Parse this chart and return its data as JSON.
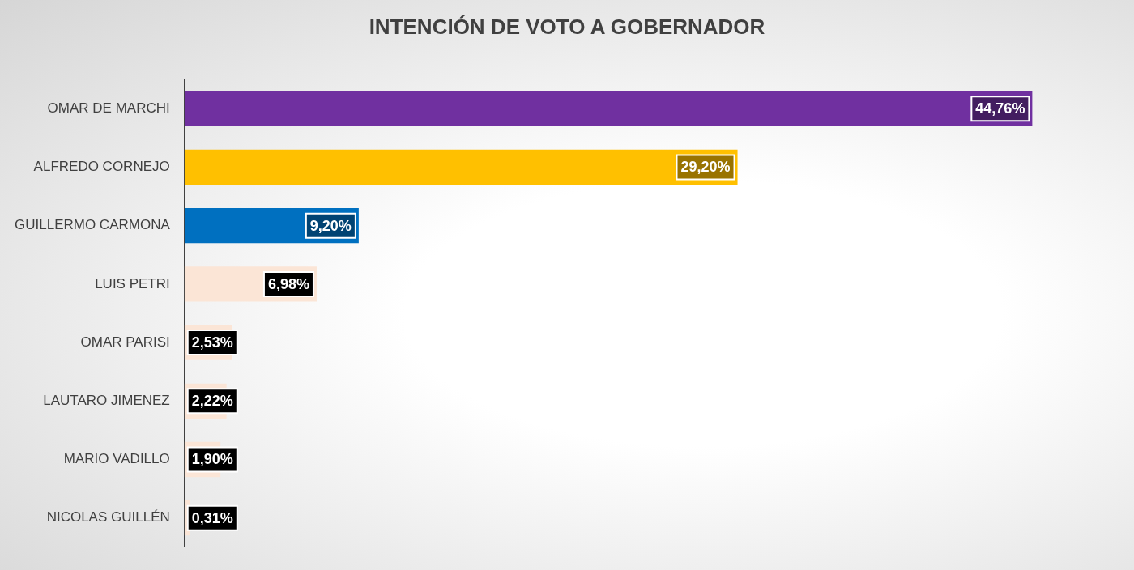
{
  "chart_data": {
    "type": "bar",
    "orientation": "horizontal",
    "title": "INTENCIÓN DE VOTO A GOBERNADOR",
    "categories": [
      "OMAR DE MARCHI",
      "ALFREDO CORNEJO",
      "GUILLERMO CARMONA",
      "LUIS PETRI",
      "OMAR PARISI",
      "LAUTARO JIMENEZ",
      "MARIO VADILLO",
      "NICOLAS GUILLÉN"
    ],
    "values": [
      44.76,
      29.2,
      9.2,
      6.98,
      2.53,
      2.22,
      1.9,
      0.31
    ],
    "value_labels": [
      "44,76%",
      "29,20%",
      "9,20%",
      "6,98%",
      "2,53%",
      "2,22%",
      "1,90%",
      "0,31%"
    ],
    "colors": [
      "#7030a0",
      "#ffc000",
      "#0070c0",
      "#fbe5d6",
      "#fbe5d6",
      "#fbe5d6",
      "#fbe5d6",
      "#fbe5d6"
    ],
    "legend": false
  }
}
